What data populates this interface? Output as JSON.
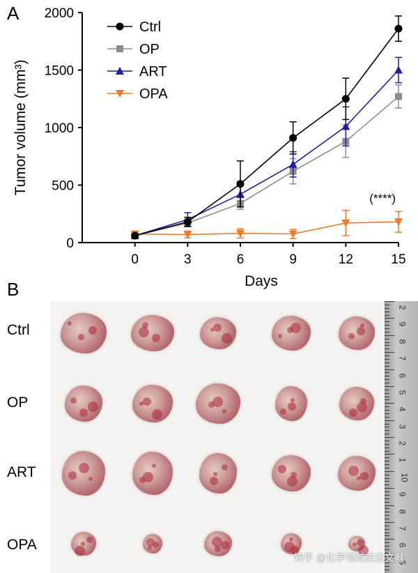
{
  "panel_a_label": "A",
  "panel_b_label": "B",
  "chart_data": {
    "type": "line",
    "xlabel": "Days",
    "ylabel": "Tumor volume (mm³)",
    "x": [
      0,
      3,
      6,
      9,
      12,
      15
    ],
    "xlim": [
      -3,
      15
    ],
    "ylim": [
      0,
      2000
    ],
    "yticks": [
      0,
      500,
      1000,
      1500,
      2000
    ],
    "xticks": [
      0,
      3,
      6,
      9,
      12,
      15
    ],
    "legend_position": "top-left",
    "annotation": "(****)",
    "series": [
      {
        "name": "Ctrl",
        "color": "#000000",
        "marker": "circle",
        "values": [
          60,
          180,
          510,
          910,
          1250,
          1860
        ],
        "errors": [
          10,
          40,
          200,
          140,
          180,
          110
        ]
      },
      {
        "name": "OP",
        "color": "#8c8c8c",
        "marker": "square",
        "values": [
          60,
          170,
          340,
          620,
          880,
          1270
        ],
        "errors": [
          10,
          30,
          50,
          110,
          140,
          100
        ]
      },
      {
        "name": "ART",
        "color": "#1f1f9e",
        "marker": "triangle-up",
        "values": [
          60,
          200,
          420,
          680,
          1010,
          1500
        ],
        "errors": [
          10,
          60,
          110,
          110,
          170,
          110
        ]
      },
      {
        "name": "OPA",
        "color": "#ec7a2a",
        "marker": "triangle-down",
        "values": [
          75,
          70,
          80,
          75,
          170,
          180
        ],
        "errors": [
          10,
          30,
          40,
          40,
          110,
          90
        ]
      }
    ]
  },
  "photo": {
    "rows": [
      "Ctrl",
      "OP",
      "ART",
      "OPA"
    ],
    "ruler_numbers": [
      "2",
      "9",
      "8",
      "7",
      "6",
      "5",
      "4",
      "3",
      "2",
      "1",
      "10",
      "9",
      "8",
      "7",
      "6",
      "5"
    ]
  },
  "watermark": "知乎 @化学领域前沿文献"
}
